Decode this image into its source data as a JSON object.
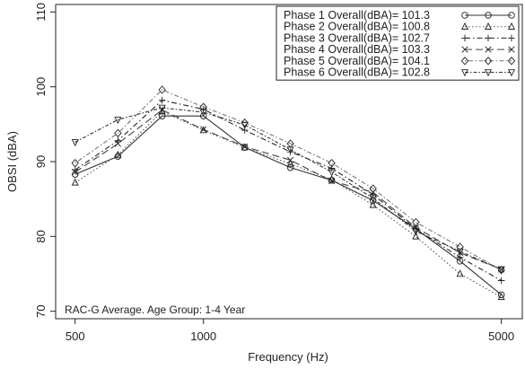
{
  "chart_data": {
    "type": "line",
    "title": "",
    "xlabel": "Frequency (Hz)",
    "ylabel": "OBSI (dBA)",
    "xscale": "log",
    "xlim": [
      450,
      5600
    ],
    "ylim": [
      69,
      111
    ],
    "xticks": [
      500,
      1000,
      5000
    ],
    "xtick_labels": [
      "500",
      "1000",
      "5000"
    ],
    "yticks": [
      70,
      80,
      90,
      100,
      110
    ],
    "ytick_labels": [
      "70",
      "80",
      "90",
      "100",
      "110"
    ],
    "grid": false,
    "legend_position": "top-right",
    "annotation": "RAC-G  Average.  Age Group:  1-4  Year",
    "x": [
      500,
      630,
      800,
      1000,
      1250,
      1600,
      2000,
      2500,
      3150,
      4000,
      5000
    ],
    "series": [
      {
        "name": "Phase 1 Overall(dBA)= 101.3",
        "marker": "circle",
        "dash": "solid",
        "values": [
          88.3,
          90.7,
          96.1,
          96.1,
          91.9,
          89.2,
          87.5,
          84.8,
          81.0,
          76.7,
          72.2
        ]
      },
      {
        "name": "Phase 2 Overall(dBA)= 100.8",
        "marker": "triangle-up",
        "dash": "dotted",
        "values": [
          87.2,
          90.9,
          96.7,
          94.2,
          91.9,
          89.7,
          87.6,
          84.2,
          80.0,
          75.0,
          71.9
        ]
      },
      {
        "name": "Phase 3 Overall(dBA)= 102.7",
        "marker": "plus",
        "dash": "dashdot",
        "values": [
          88.9,
          92.8,
          98.2,
          97.0,
          94.2,
          91.3,
          89.1,
          85.6,
          81.0,
          77.2,
          74.1
        ]
      },
      {
        "name": "Phase 4 Overall(dBA)= 103.3",
        "marker": "cross",
        "dash": "longdash",
        "values": [
          88.6,
          92.4,
          96.9,
          94.3,
          92.0,
          90.2,
          87.4,
          85.9,
          81.2,
          77.8,
          75.6
        ]
      },
      {
        "name": "Phase 5 Overall(dBA)= 104.1",
        "marker": "diamond",
        "dash": "dotdash2",
        "values": [
          89.8,
          93.8,
          99.6,
          97.3,
          95.2,
          92.4,
          89.8,
          86.4,
          81.9,
          78.6,
          75.5
        ]
      },
      {
        "name": "Phase 6 Overall(dBA)= 102.8",
        "marker": "triangle-down",
        "dash": "dashdot2",
        "values": [
          92.6,
          95.6,
          97.2,
          96.6,
          94.9,
          91.6,
          88.6,
          85.1,
          80.7,
          78.0,
          75.6
        ]
      }
    ]
  }
}
